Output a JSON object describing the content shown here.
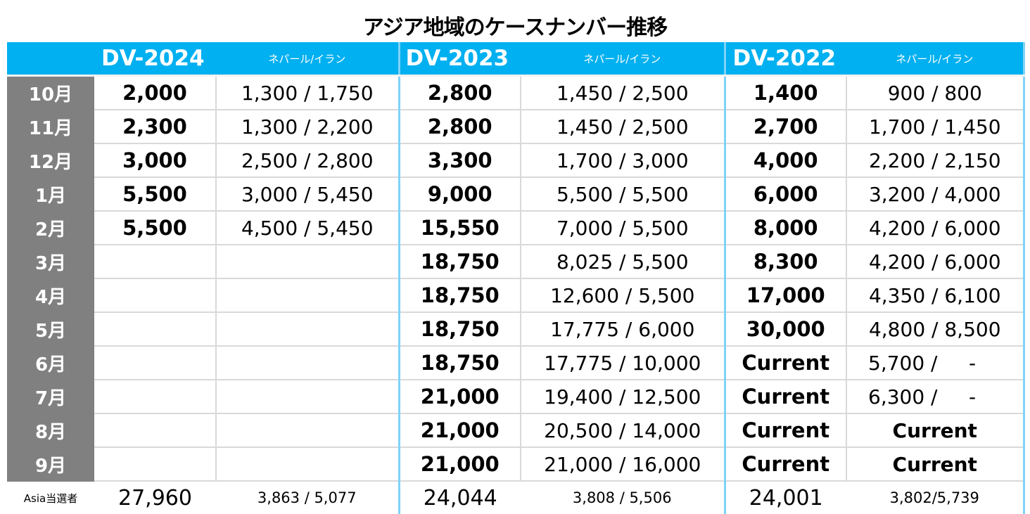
{
  "title": "アジア地域のケースナンバー推移",
  "columns": [
    {
      "name": "DV-2024",
      "sub_label": "ネパール/イラン"
    },
    {
      "name": "DV-2023",
      "sub_label": "ネパール/イラン"
    },
    {
      "name": "DV-2022",
      "sub_label": "ネパール/イラン"
    }
  ],
  "rows": [
    {
      "month": "10月",
      "dv2024": "2,000",
      "dv2024_sub": "1,300 / 1,750",
      "dv2023": "2,800",
      "dv2023_sub": "1,450 / 2,500",
      "dv2022": "1,400",
      "dv2022_sub": "900 / 800"
    },
    {
      "month": "11月",
      "dv2024": "2,300",
      "dv2024_sub": "1,300 / 2,200",
      "dv2023": "2,800",
      "dv2023_sub": "1,450 / 2,500",
      "dv2022": "2,700",
      "dv2022_sub": "1,700 / 1,450"
    },
    {
      "month": "12月",
      "dv2024": "3,000",
      "dv2024_sub": "2,500 / 2,800",
      "dv2023": "3,300",
      "dv2023_sub": "1,700 / 3,000",
      "dv2022": "4,000",
      "dv2022_sub": "2,200 / 2,150"
    },
    {
      "month": "1月",
      "dv2024": "5,500",
      "dv2024_sub": "3,000 / 5,450",
      "dv2023": "9,000",
      "dv2023_sub": "5,500 / 5,500",
      "dv2022": "6,000",
      "dv2022_sub": "3,200 / 4,000"
    },
    {
      "month": "2月",
      "dv2024": "5,500",
      "dv2024_sub": "4,500 / 5,450",
      "dv2023": "15,550",
      "dv2023_sub": "7,000 / 5,500",
      "dv2022": "8,000",
      "dv2022_sub": "4,200 / 6,000"
    },
    {
      "month": "3月",
      "dv2024": "",
      "dv2024_sub": "",
      "dv2023": "18,750",
      "dv2023_sub": "8,025 / 5,500",
      "dv2022": "8,300",
      "dv2022_sub": "4,200 / 6,000"
    },
    {
      "month": "4月",
      "dv2024": "",
      "dv2024_sub": "",
      "dv2023": "18,750",
      "dv2023_sub": "12,600 / 5,500",
      "dv2022": "17,000",
      "dv2022_sub": "4,350 / 6,100"
    },
    {
      "month": "5月",
      "dv2024": "",
      "dv2024_sub": "",
      "dv2023": "18,750",
      "dv2023_sub": "17,775 / 6,000",
      "dv2022": "30,000",
      "dv2022_sub": "4,800 / 8,500"
    },
    {
      "month": "6月",
      "dv2024": "",
      "dv2024_sub": "",
      "dv2023": "18,750",
      "dv2023_sub": "17,775 / 10,000",
      "dv2022": "Current",
      "dv2022_sub": "5,700 /     -"
    },
    {
      "month": "7月",
      "dv2024": "",
      "dv2024_sub": "",
      "dv2023": "21,000",
      "dv2023_sub": "19,400 / 12,500",
      "dv2022": "Current",
      "dv2022_sub": "6,300 /     -"
    },
    {
      "month": "8月",
      "dv2024": "",
      "dv2024_sub": "",
      "dv2023": "21,000",
      "dv2023_sub": "20,500 / 14,000",
      "dv2022": "Current",
      "dv2022_sub": "Current"
    },
    {
      "month": "9月",
      "dv2024": "",
      "dv2024_sub": "",
      "dv2023": "21,000",
      "dv2023_sub": "21,000 / 16,000",
      "dv2022": "Current",
      "dv2022_sub": "Current"
    }
  ],
  "totals": {
    "label": "Asia当選者",
    "dv2024": "27,960",
    "dv2024_sub": "3,863 / 5,077",
    "dv2023": "24,044",
    "dv2023_sub": "3,808 / 5,506",
    "dv2022": "24,001",
    "dv2022_sub": "3,802/5,739"
  },
  "colors": {
    "header_bg": "#00b0f0",
    "month_bg": "#808080",
    "separator": "#7fd3f7",
    "grid": "#d9d9d9"
  }
}
